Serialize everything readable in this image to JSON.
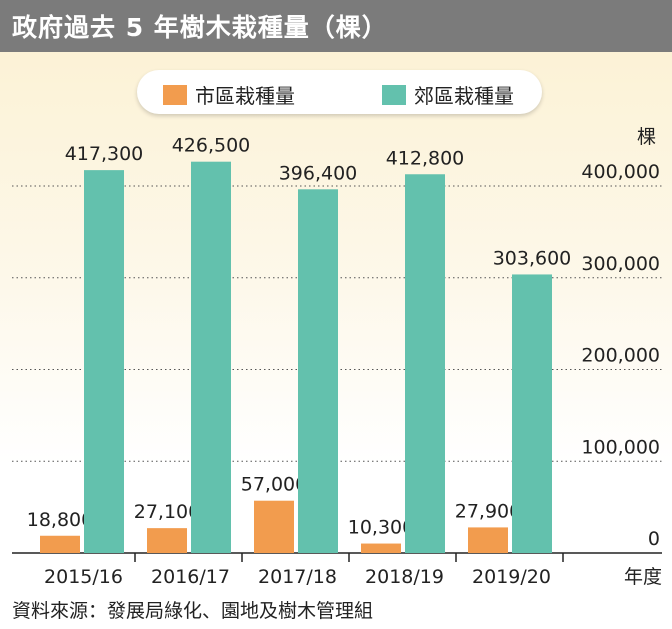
{
  "title": "政府過去 5 年樹木栽種量（棵）",
  "source": "資料來源：發展局綠化、園地及樹木管理組",
  "chart_data": {
    "type": "bar",
    "title": "政府過去 5 年樹木栽種量（棵）",
    "xlabel": "年度",
    "ylabel": "棵",
    "ylim": [
      0,
      400000
    ],
    "yticks": [
      "0",
      "100,000",
      "200,000",
      "300,000",
      "400,000"
    ],
    "categories": [
      "2015/16",
      "2016/17",
      "2017/18",
      "2018/19",
      "2019/20"
    ],
    "series": [
      {
        "name": "市區栽種量",
        "color": "#f29c4e",
        "values": [
          18800,
          27100,
          57000,
          10300,
          27900
        ],
        "labels": [
          "18,800",
          "27,100",
          "57,000",
          "10,300",
          "27,900"
        ]
      },
      {
        "name": "郊區栽種量",
        "color": "#63c1ad",
        "values": [
          417300,
          426500,
          396400,
          412800,
          303600
        ],
        "labels": [
          "417,300",
          "426,500",
          "396,400",
          "412,800",
          "303,600"
        ]
      }
    ],
    "grid": true,
    "legend_position": "top"
  }
}
